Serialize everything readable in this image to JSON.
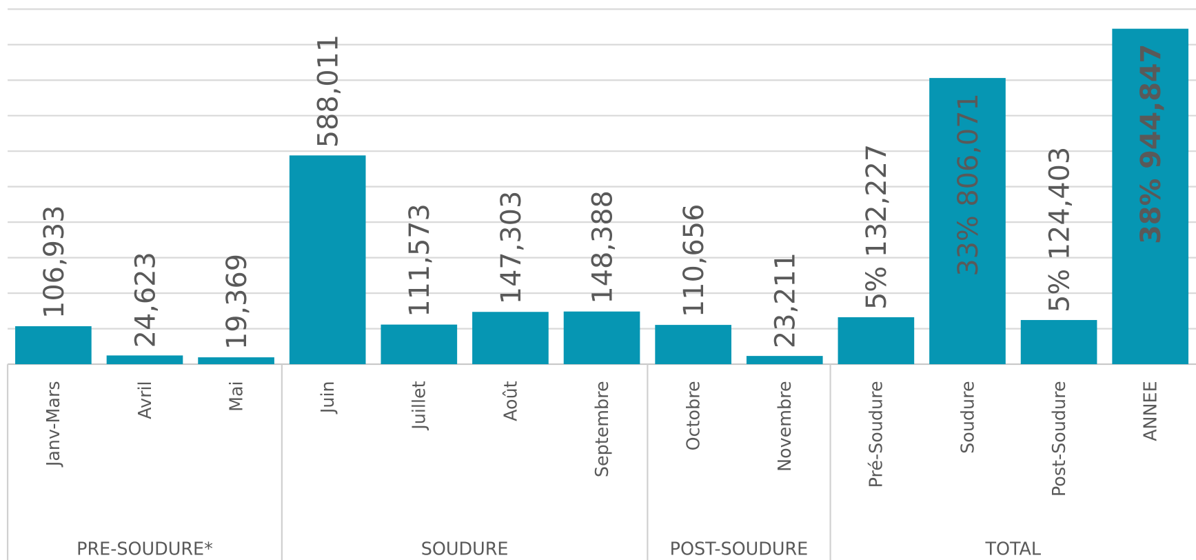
{
  "chart_data": {
    "type": "grouped-bar",
    "color": "#0696b3",
    "ylim": [
      0,
      1000000
    ],
    "yticks": [
      0,
      100000,
      200000,
      300000,
      400000,
      500000,
      600000,
      700000,
      800000,
      900000,
      1000000
    ],
    "grid": true,
    "groups": [
      {
        "label": "PRE-SOUDURE*",
        "categories": [
          "Janv-Mars",
          "Avril",
          "Mai"
        ],
        "values": [
          106933,
          24623,
          19369
        ],
        "value_labels": [
          "106,933",
          "24,623",
          "19,369"
        ]
      },
      {
        "label": "SOUDURE",
        "categories": [
          "Juin",
          "Juillet",
          "Août",
          "Septembre"
        ],
        "values": [
          588011,
          111573,
          147303,
          148388
        ],
        "value_labels": [
          "588,011",
          "111,573",
          "147,303",
          "148,388"
        ]
      },
      {
        "label": "POST-SOUDURE",
        "categories": [
          "Octobre",
          "Novembre"
        ],
        "values": [
          110656,
          23211
        ],
        "value_labels": [
          "110,656",
          "23,211"
        ]
      },
      {
        "label": "TOTAL",
        "categories": [
          "Pré-Soudure",
          "Soudure",
          "Post-Soudure",
          "ANNEE"
        ],
        "values": [
          132227,
          806071,
          124403,
          944847
        ],
        "value_labels": [
          "5% 132,227",
          "33% 806,071",
          "5% 124,403",
          "38% 944,847"
        ]
      }
    ]
  }
}
